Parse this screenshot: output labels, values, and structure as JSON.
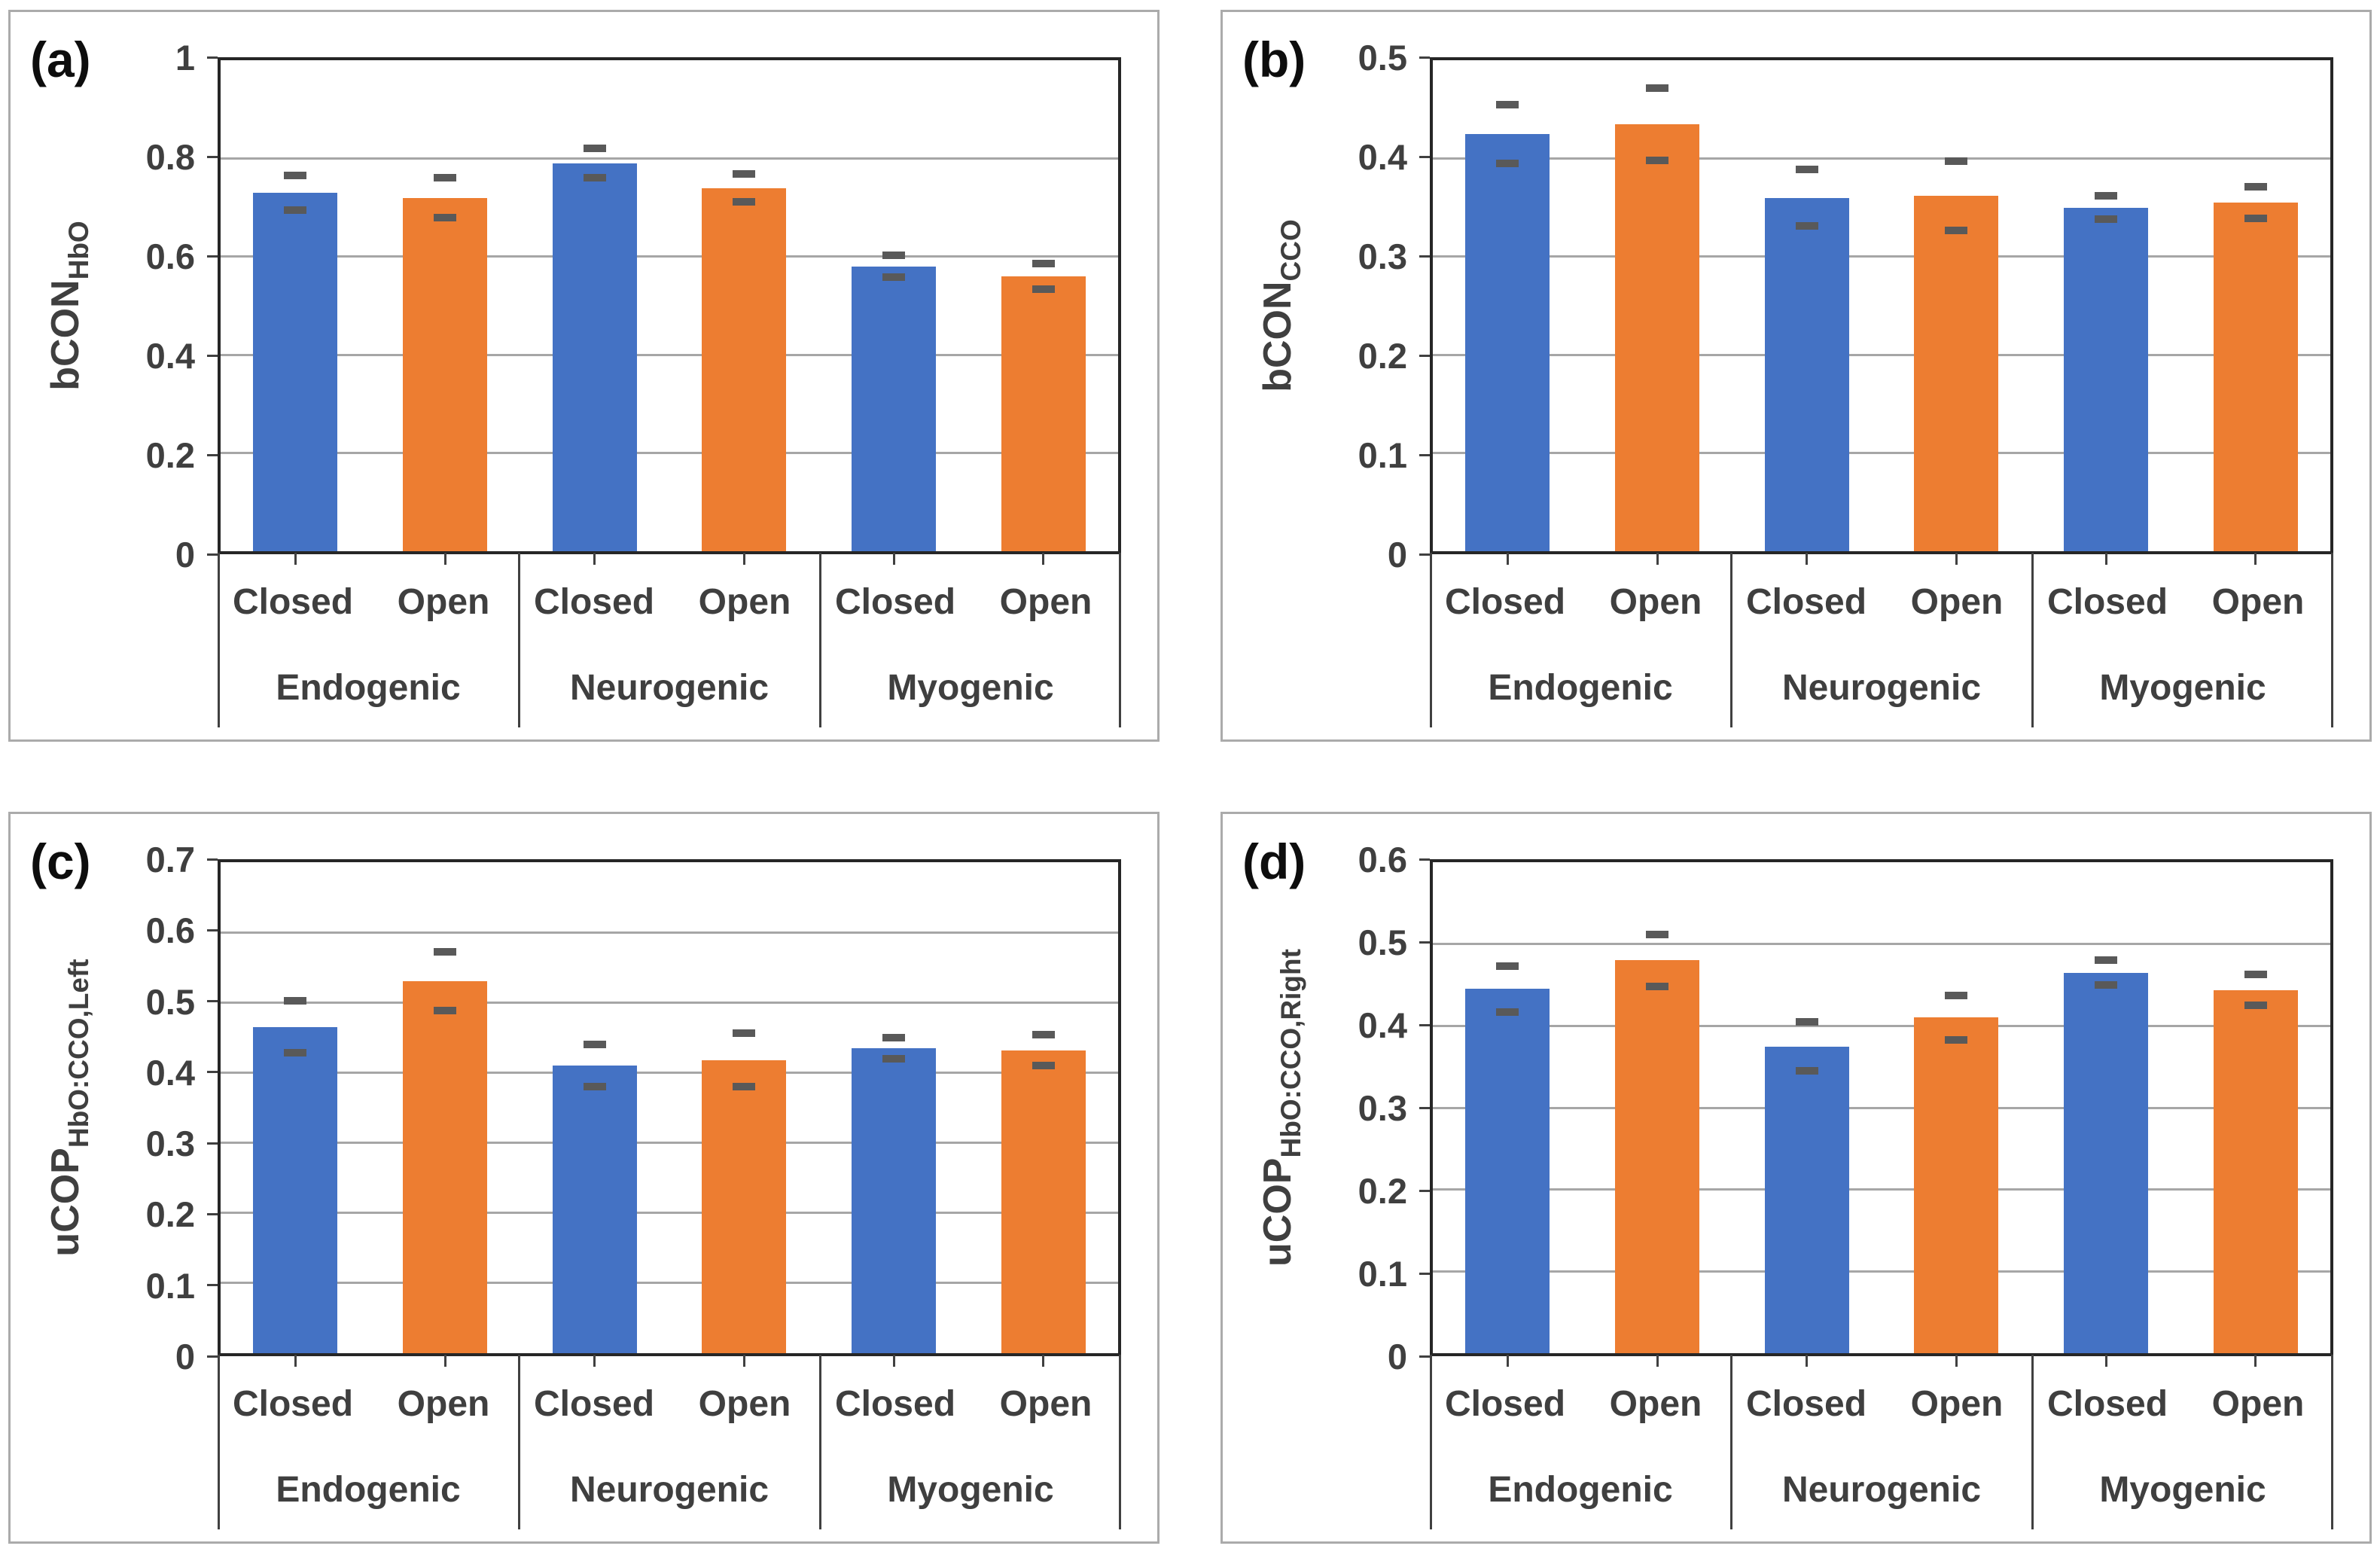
{
  "figure": {
    "background": "#ffffff"
  },
  "colors": {
    "closed_bar": "#4472C4",
    "open_bar": "#ED7D31",
    "error_bar": "#595959",
    "gridline": "#A6A6A6",
    "plot_border": "#262626",
    "axis_line": "#404040",
    "axis_text": "#3f3f3f",
    "panel_border": "#ababab",
    "panel_letter": "#0d0d0d"
  },
  "chart_data": [
    {
      "type": "bar",
      "panel_label": "(a)",
      "y_axis": {
        "title_main": "bCON",
        "title_sub": "HbO",
        "max": 1.0,
        "ticks": [
          "1",
          "0.8",
          "0.6",
          "0.4",
          "0.2",
          "0"
        ],
        "ylim": [
          0,
          1
        ]
      },
      "categories": [
        "Endogenic",
        "Neurogenic",
        "Myogenic"
      ],
      "sub_categories": [
        "Closed",
        "Open"
      ],
      "grid": true,
      "legend": "none",
      "series": [
        {
          "name": "Closed",
          "color": "#4472C4",
          "values": [
            0.73,
            0.79,
            0.58
          ],
          "errors": [
            0.035,
            0.03,
            0.022
          ]
        },
        {
          "name": "Open",
          "color": "#ED7D31",
          "values": [
            0.72,
            0.74,
            0.56
          ],
          "errors": [
            0.04,
            0.028,
            0.026
          ]
        }
      ]
    },
    {
      "type": "bar",
      "panel_label": "(b)",
      "y_axis": {
        "title_main": "bCON",
        "title_sub": "CCO",
        "max": 0.5,
        "ticks": [
          "0.5",
          "0.4",
          "0.3",
          "0.2",
          "0.1",
          "0"
        ],
        "ylim": [
          0,
          0.5
        ]
      },
      "categories": [
        "Endogenic",
        "Neurogenic",
        "Myogenic"
      ],
      "sub_categories": [
        "Closed",
        "Open"
      ],
      "grid": true,
      "legend": "none",
      "series": [
        {
          "name": "Closed",
          "color": "#4472C4",
          "values": [
            0.425,
            0.36,
            0.35
          ],
          "errors": [
            0.03,
            0.029,
            0.012
          ]
        },
        {
          "name": "Open",
          "color": "#ED7D31",
          "values": [
            0.435,
            0.362,
            0.355
          ],
          "errors": [
            0.037,
            0.035,
            0.016
          ]
        }
      ]
    },
    {
      "type": "bar",
      "panel_label": "(c)",
      "y_axis": {
        "title_main": "uCOP",
        "title_sub": "HbO:CCO,Left",
        "max": 0.7,
        "ticks": [
          "0.7",
          "0.6",
          "0.5",
          "0.4",
          "0.3",
          "0.2",
          "0.1",
          "0"
        ],
        "ylim": [
          0,
          0.7
        ]
      },
      "categories": [
        "Endogenic",
        "Neurogenic",
        "Myogenic"
      ],
      "sub_categories": [
        "Closed",
        "Open"
      ],
      "grid": true,
      "legend": "none",
      "series": [
        {
          "name": "Closed",
          "color": "#4472C4",
          "values": [
            0.465,
            0.41,
            0.435
          ],
          "errors": [
            0.037,
            0.03,
            0.015
          ]
        },
        {
          "name": "Open",
          "color": "#ED7D31",
          "values": [
            0.53,
            0.418,
            0.432
          ],
          "errors": [
            0.042,
            0.038,
            0.022
          ]
        }
      ]
    },
    {
      "type": "bar",
      "panel_label": "(d)",
      "y_axis": {
        "title_main": "uCOP",
        "title_sub": "HbO:CCO,Right",
        "max": 0.6,
        "ticks": [
          "0.6",
          "0.5",
          "0.4",
          "0.3",
          "0.2",
          "0.1",
          "0"
        ],
        "ylim": [
          0,
          0.6
        ]
      },
      "categories": [
        "Endogenic",
        "Neurogenic",
        "Myogenic"
      ],
      "sub_categories": [
        "Closed",
        "Open"
      ],
      "grid": true,
      "legend": "none",
      "series": [
        {
          "name": "Closed",
          "color": "#4472C4",
          "values": [
            0.445,
            0.375,
            0.465
          ],
          "errors": [
            0.028,
            0.03,
            0.015
          ]
        },
        {
          "name": "Open",
          "color": "#ED7D31",
          "values": [
            0.48,
            0.41,
            0.444
          ],
          "errors": [
            0.032,
            0.027,
            0.019
          ]
        }
      ]
    }
  ]
}
